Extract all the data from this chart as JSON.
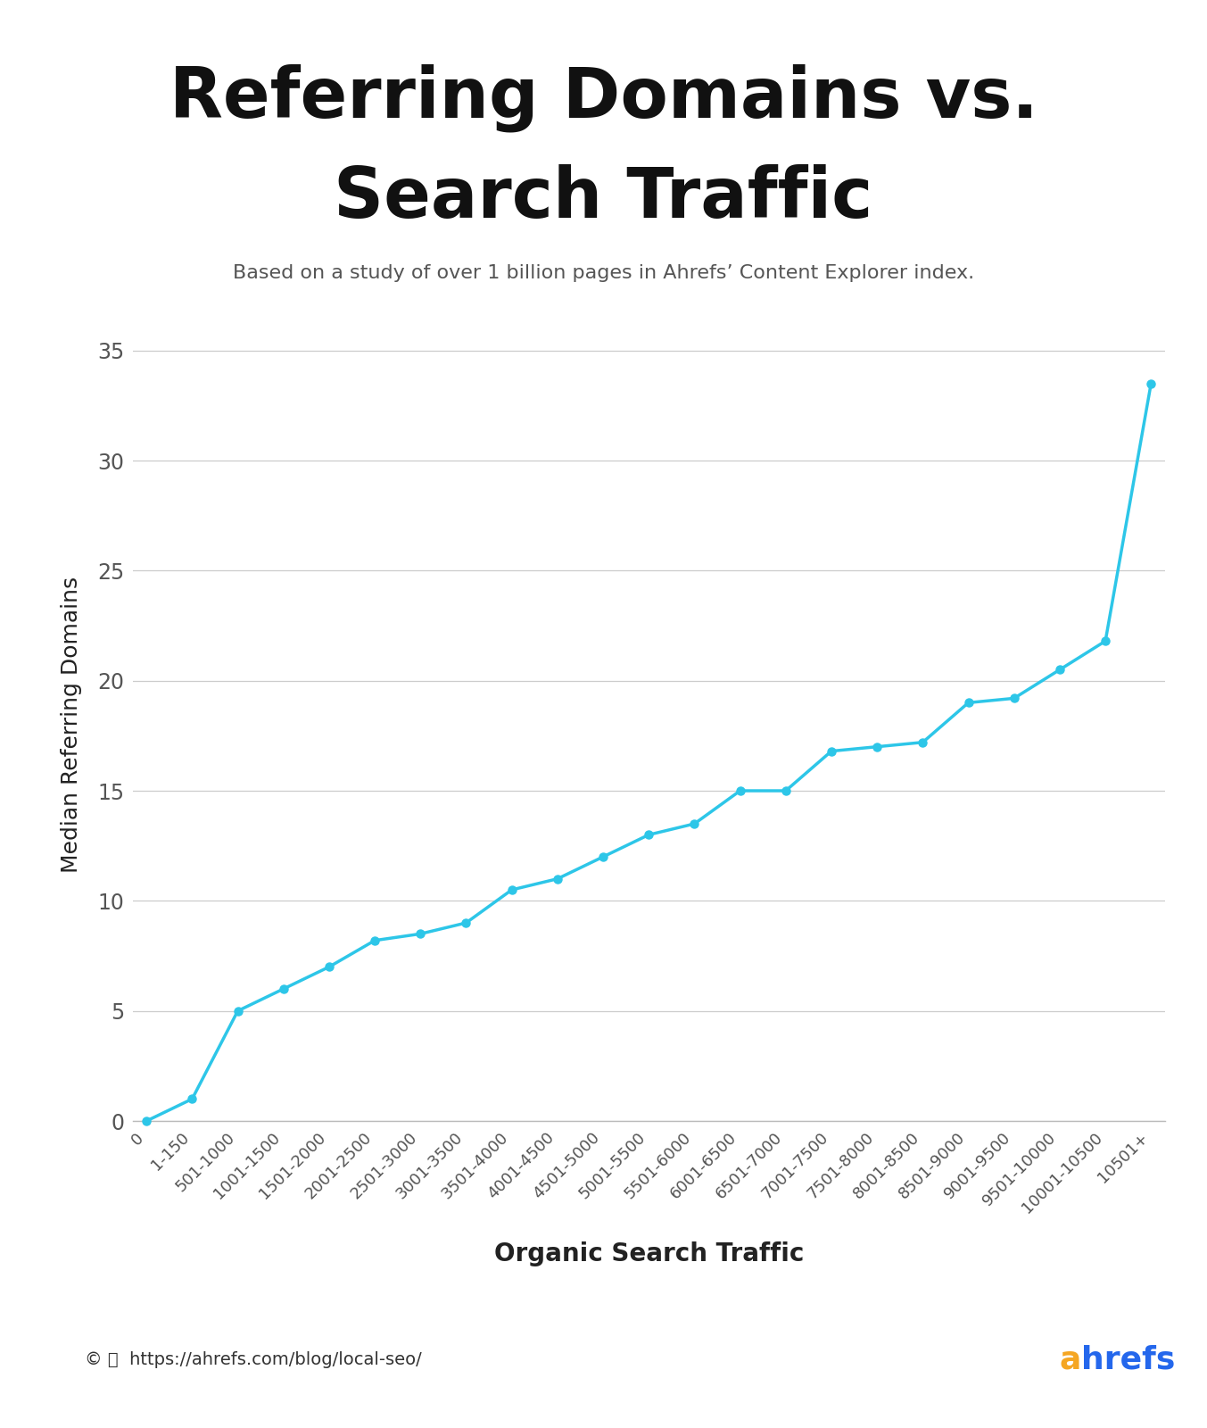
{
  "title_line1": "Referring Domains vs.",
  "title_line2": "Search Traffic",
  "subtitle": "Based on a study of over 1 billion pages in Ahrefs’ Content Explorer index.",
  "xlabel": "Organic Search Traffic",
  "ylabel": "Median Referring Domains",
  "x_labels": [
    "0",
    "1-150",
    "501-1000",
    "1001-1500",
    "1501-2000",
    "2001-2500",
    "2501-3000",
    "3001-3500",
    "3501-4000",
    "4001-4500",
    "4501-5000",
    "5001-5500",
    "5501-6000",
    "6001-6500",
    "6501-7000",
    "7001-7500",
    "7501-8000",
    "8001-8500",
    "8501-9000",
    "9001-9500",
    "9501-10000",
    "10001-10500",
    "10501+"
  ],
  "y_values": [
    0,
    1,
    5,
    6,
    7,
    8.2,
    8.5,
    9,
    10.5,
    11,
    12,
    13,
    13.5,
    15,
    15,
    16.8,
    17,
    17.2,
    19,
    19.2,
    20.5,
    21.8,
    33.5
  ],
  "line_color": "#2DC6E8",
  "marker_color": "#2DC6E8",
  "background_color": "#ffffff",
  "grid_color": "#cccccc",
  "title_color": "#111111",
  "subtitle_color": "#555555",
  "axis_label_color": "#222222",
  "tick_label_color": "#555555",
  "footer_brand_color_a": "#F5A623",
  "footer_brand_color_h": "#2467EC",
  "ylim": [
    0,
    36
  ],
  "yticks": [
    0,
    5,
    10,
    15,
    20,
    25,
    30,
    35
  ],
  "figsize": [
    13.53,
    16.0
  ],
  "dpi": 100
}
